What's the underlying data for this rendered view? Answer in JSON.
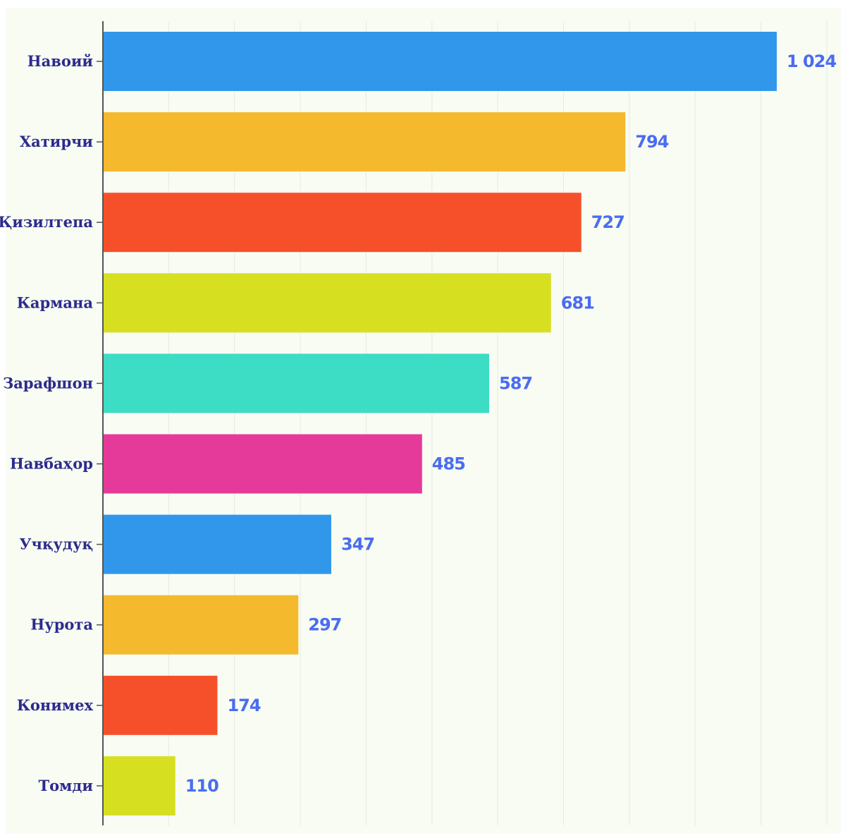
{
  "chart_data": {
    "type": "bar",
    "orientation": "horizontal",
    "categories": [
      "Навоий",
      "Хатирчи",
      "Қизилтепа",
      "Кармана",
      "Зарафшон",
      "Навбаҳор",
      "Учқудуқ",
      "Нурота",
      "Конимех",
      "Томди"
    ],
    "values": [
      1024,
      794,
      727,
      681,
      587,
      485,
      347,
      297,
      174,
      110
    ],
    "value_labels": [
      "1 024",
      "794",
      "727",
      "681",
      "587",
      "485",
      "347",
      "297",
      "174",
      "110"
    ],
    "colors": [
      "#3197ea",
      "#f5b92e",
      "#f6502b",
      "#d6e021",
      "#3ddcc4",
      "#e63a9a",
      "#3197ea",
      "#f5b92e",
      "#f6502b",
      "#d6e021"
    ],
    "xlim": [
      0,
      1100
    ],
    "grid_step": 100,
    "grid": true,
    "legend": "none",
    "title": "",
    "xlabel": "",
    "ylabel": ""
  },
  "theme": {
    "background": "#f8fcf3",
    "category_text": "#2c2b8c",
    "value_text": "#4a6cf2"
  }
}
